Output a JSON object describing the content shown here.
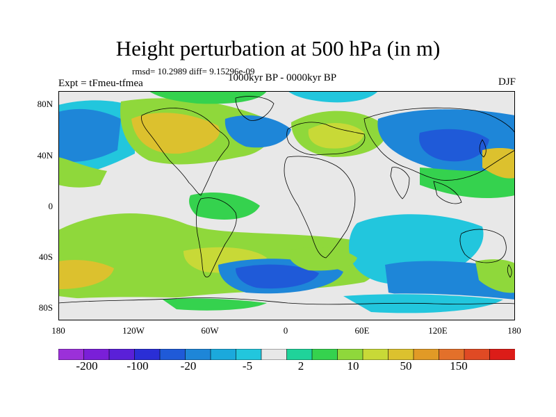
{
  "title": "Height perturbation at 500 hPa (in m)",
  "stats": "rmsd= 10.2989 diff= 9.15296e-09",
  "experiment": "Expt = tFmeu-tfmea",
  "period": "1000kyr BP - 0000kyr BP",
  "season": "DJF",
  "lat_ticks": [
    "80N",
    "40N",
    "0",
    "40S",
    "80S"
  ],
  "lon_ticks": [
    "180",
    "120W",
    "60W",
    "0",
    "60E",
    "120E",
    "180"
  ],
  "colorbar_labels": [
    "-200",
    "-100",
    "-20",
    "-5",
    "2",
    "10",
    "50",
    "150"
  ],
  "colorbar_colors": [
    "#9b30d9",
    "#7a1fd8",
    "#5a20d8",
    "#2a2ed6",
    "#1f5ad8",
    "#1e86d8",
    "#1ba9dc",
    "#22c6dd",
    "#e8e8e8",
    "#1fd39a",
    "#35d24e",
    "#8fd83b",
    "#c8d937",
    "#dcc12e",
    "#e19a26",
    "#e3702a",
    "#e04a24",
    "#dc1c18"
  ],
  "map_colors": {
    "land_outline": "#000000",
    "neutral": "#e8e8e8"
  }
}
